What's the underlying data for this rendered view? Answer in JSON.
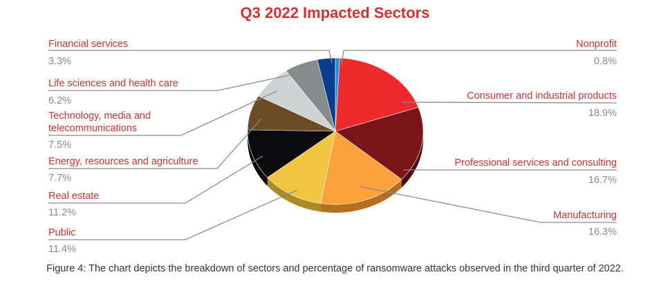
{
  "chart_data": {
    "type": "pie",
    "title": "Q3 2022 Impacted Sectors",
    "slices": [
      {
        "label": "Nonprofit",
        "value": 0.8,
        "display": "0.8%",
        "color": "#2a8ad8",
        "dark": "#1b5f98"
      },
      {
        "label": "Consumer and industrial products",
        "value": 18.9,
        "display": "18.9%",
        "color": "#ef2a2a",
        "dark": "#a31c1c"
      },
      {
        "label": "Professional services and consulting",
        "value": 16.7,
        "display": "16.7%",
        "color": "#7a1416",
        "dark": "#4e0c0e"
      },
      {
        "label": "Manufacturing",
        "value": 16.3,
        "display": "16.3%",
        "color": "#fba23a",
        "dark": "#b66f1e"
      },
      {
        "label": "Public",
        "value": 11.4,
        "display": "11.4%",
        "color": "#f2c540",
        "dark": "#ad8a22"
      },
      {
        "label": "Real estate",
        "value": 11.2,
        "display": "11.2%",
        "color": "#0b0b0d",
        "dark": "#000000"
      },
      {
        "label": "Energy, resources and agriculture",
        "value": 7.7,
        "display": "7.7%",
        "color": "#6b4c26",
        "dark": "#453015"
      },
      {
        "label": "Technology, media and telecommunications",
        "value": 7.5,
        "display": "7.5%",
        "color": "#ced3d4",
        "dark": "#8f9596"
      },
      {
        "label": "Life sciences and health care",
        "value": 6.2,
        "display": "6.2%",
        "color": "#858c8c",
        "dark": "#595f5f"
      },
      {
        "label": "Financial services",
        "value": 3.3,
        "display": "3.3%",
        "color": "#0a3d91",
        "dark": "#062660"
      }
    ],
    "legend": "callout labels"
  },
  "caption": "Figure 4: The chart depicts the breakdown of sectors and percentage of ransomware attacks observed in the third quarter of 2022."
}
